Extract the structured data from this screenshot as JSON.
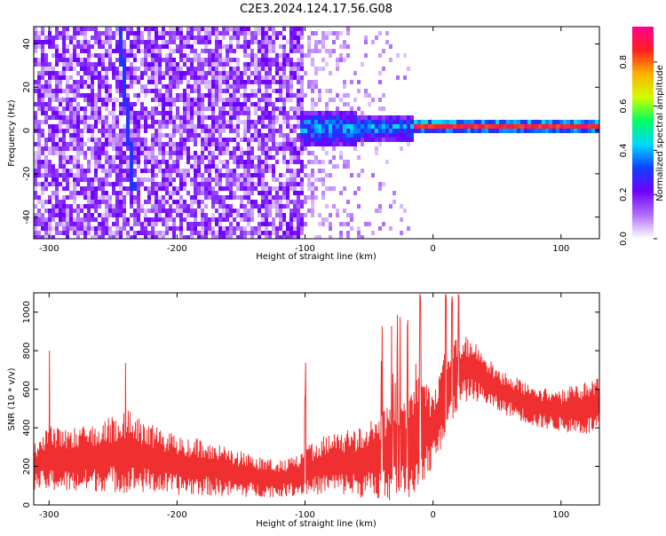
{
  "title": "C2E3.2024.124.17.56.G08",
  "chart_data": [
    {
      "type": "heatmap",
      "xlabel": "Height of straight line (km)",
      "ylabel": "Frequency (Hz)",
      "xlim": [
        -312,
        130
      ],
      "ylim": [
        -50,
        48
      ],
      "xticks": [
        -300,
        -200,
        -100,
        0,
        100
      ],
      "yticks": [
        -40,
        -20,
        0,
        20,
        40
      ],
      "colorbar": {
        "label": "Normalized spectral amplitude",
        "range": [
          0,
          0.96
        ],
        "ticks": [
          0.0,
          0.2,
          0.4,
          0.6,
          0.8
        ],
        "colormap": [
          "#ffffff",
          "#b070ff",
          "#7000ff",
          "#1040ff",
          "#00d8ff",
          "#00ff60",
          "#d0ff00",
          "#ffb000",
          "#ff2020",
          "#ff0090"
        ]
      },
      "ridge": {
        "description_points_km_hz": [
          [
            -100,
            1
          ],
          [
            -60,
            1
          ],
          [
            -20,
            2
          ],
          [
            0,
            1
          ],
          [
            50,
            2
          ],
          [
            130,
            2
          ]
        ],
        "amplitude_range": [
          0.35,
          0.85
        ]
      },
      "diagonal_streak": [
        [
          -245,
          48
        ],
        [
          -234,
          -28
        ]
      ]
    },
    {
      "type": "area",
      "xlabel": "Height of straight line (km)",
      "ylabel": "SNR (10 * v/v)",
      "xlim": [
        -312,
        130
      ],
      "ylim": [
        0,
        1100
      ],
      "xticks": [
        -300,
        -200,
        -100,
        0,
        100
      ],
      "yticks": [
        0,
        200,
        400,
        600,
        800,
        1000
      ],
      "color": "#f03030",
      "envelope": {
        "x": [
          -312,
          -300,
          -280,
          -260,
          -240,
          -220,
          -200,
          -180,
          -160,
          -140,
          -120,
          -105,
          -95,
          -80,
          -60,
          -40,
          -20,
          -10,
          0,
          10,
          20,
          30,
          40,
          50,
          60,
          80,
          100,
          120,
          130
        ],
        "lower": [
          80,
          70,
          60,
          70,
          60,
          60,
          50,
          50,
          40,
          40,
          40,
          50,
          50,
          60,
          40,
          20,
          20,
          100,
          200,
          350,
          500,
          550,
          520,
          480,
          460,
          400,
          380,
          360,
          380
        ],
        "upper": [
          320,
          420,
          400,
          430,
          500,
          420,
          360,
          340,
          300,
          260,
          230,
          260,
          320,
          380,
          400,
          480,
          600,
          700,
          560,
          820,
          900,
          860,
          800,
          720,
          680,
          620,
          600,
          640,
          660
        ]
      },
      "spikes_x": [
        -300,
        -240,
        -100,
        -40,
        -20,
        -10,
        10,
        15,
        20
      ]
    }
  ]
}
